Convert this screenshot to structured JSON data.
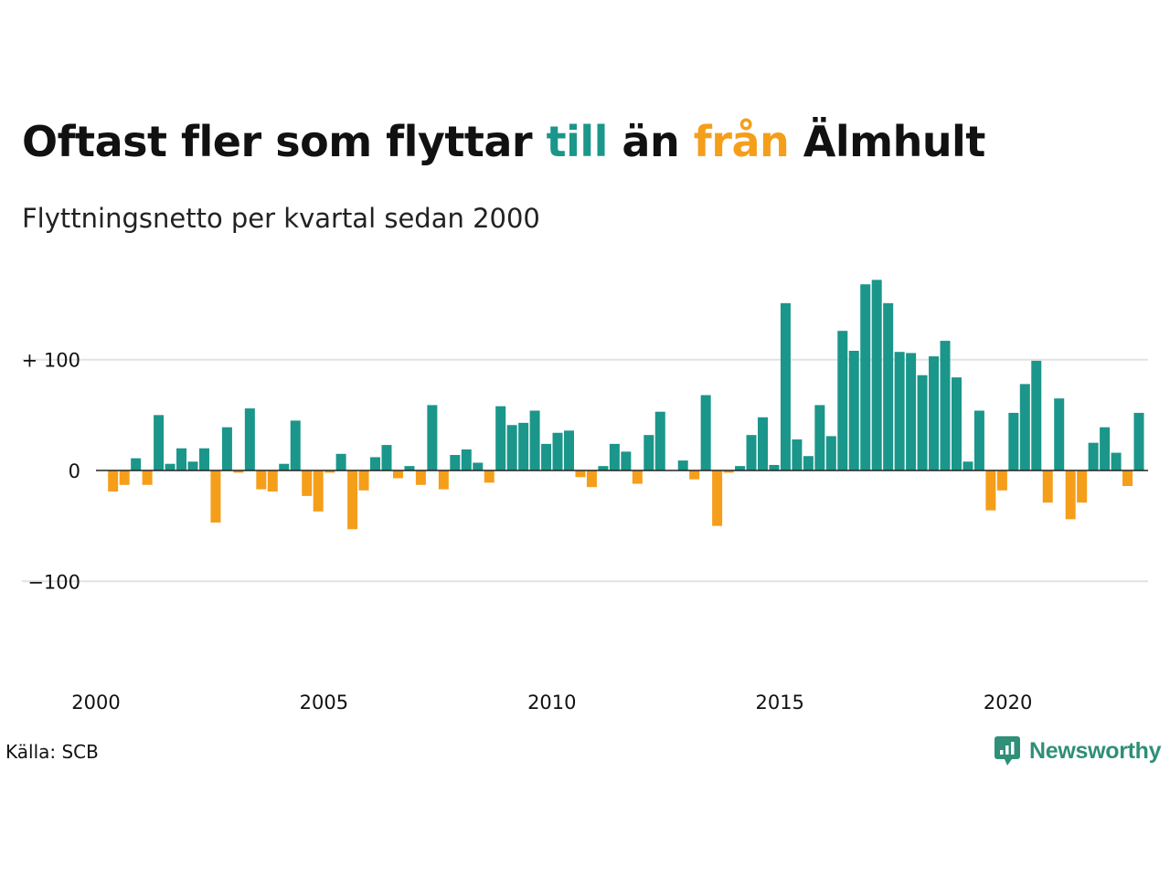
{
  "title": {
    "part1": "Oftast fler som flyttar ",
    "part2": "till",
    "part3": " än ",
    "part4": "från",
    "part5": " Älmhult"
  },
  "subtitle": "Flyttningsnetto per kvartal sedan 2000",
  "source": "Källa: SCB",
  "brand": {
    "name": "Newsworthy",
    "icon": "newsworthy-logo-icon"
  },
  "colors": {
    "positive": "#1b968a",
    "negative": "#f59e1a",
    "grid": "#e2e2e2",
    "axis": "#222222",
    "brand": "#2f8f78"
  },
  "chart_data": {
    "type": "bar",
    "x_start": "2000 Q1",
    "x_end": "2023 Q1",
    "y_ticks": [
      {
        "value": 100,
        "label": "+ 100"
      },
      {
        "value": 0,
        "label": "0"
      },
      {
        "value": -100,
        "label": "−100"
      }
    ],
    "x_ticks": [
      "2000",
      "2005",
      "2010",
      "2015",
      "2020"
    ],
    "ylim": [
      -185,
      175
    ],
    "grid": true,
    "legend": false,
    "values": [
      0,
      -19,
      -13,
      11,
      -13,
      50,
      6,
      20,
      8,
      20,
      -47,
      39,
      -2,
      56,
      -17,
      -19,
      6,
      45,
      -23,
      -37,
      -2,
      15,
      -53,
      -18,
      12,
      23,
      -7,
      4,
      -13,
      59,
      -17,
      14,
      19,
      7,
      -11,
      58,
      41,
      43,
      54,
      24,
      34,
      36,
      -6,
      -15,
      4,
      24,
      17,
      -12,
      32,
      53,
      0,
      9,
      -8,
      68,
      -50,
      -2,
      4,
      32,
      48,
      5,
      151,
      28,
      13,
      59,
      31,
      126,
      108,
      168,
      172,
      151,
      107,
      106,
      86,
      103,
      117,
      84,
      8,
      54,
      -36,
      -18,
      52,
      78,
      99,
      -29,
      65,
      -44,
      -29,
      25,
      39,
      16,
      -14,
      52
    ]
  }
}
